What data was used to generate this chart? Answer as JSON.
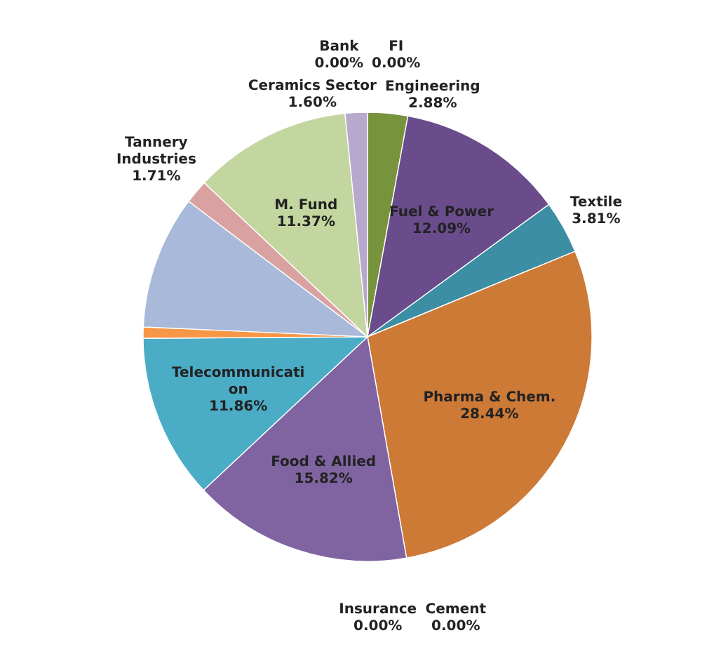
{
  "chart_data": {
    "type": "pie",
    "categories": [
      "Engineering",
      "Fuel & Power",
      "Textile",
      "Pharma & Chem.",
      "Insurance",
      "Cement",
      "Food & Allied",
      "Telecommunication",
      null,
      null,
      "Tannery Industries",
      "M. Fund",
      "Ceramics Sector",
      "Bank",
      "FI"
    ],
    "values": [
      2.88,
      12.09,
      3.81,
      28.44,
      0,
      0,
      15.82,
      11.86,
      0.8,
      9.62,
      1.71,
      11.37,
      1.6,
      0,
      0
    ],
    "value_labels": [
      "2.88%",
      "12.09%",
      "3.81%",
      "28.44%",
      "0.00%",
      "0.00%",
      "15.82%",
      "11.86%",
      null,
      null,
      "1.71%",
      "11.37%",
      "1.60%",
      "0.00%",
      "0.00%"
    ],
    "colors": [
      "#77933c",
      "#6a4c8c",
      "#3c8ea5",
      "#cd7a37",
      "#c0504d",
      "#9bbb59",
      "#8064a2",
      "#4bacc6",
      "#f79646",
      "#a9b9d9",
      "#d9a1a0",
      "#c4d6a0",
      "#b7a9cc",
      "#4f81bd",
      "#8eb4e3"
    ]
  }
}
